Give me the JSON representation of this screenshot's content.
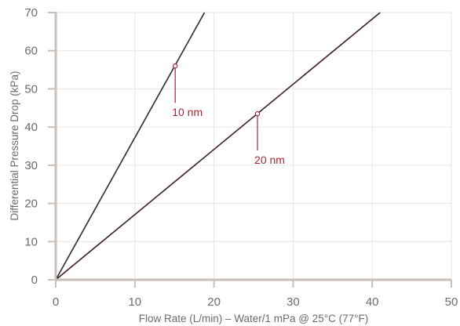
{
  "chart_data": {
    "type": "line",
    "xlabel": "Flow Rate (L/min) – Water/1 mPa @ 25°C (77°F)",
    "ylabel": "Differential Pressure Drop  (kPa)",
    "xlim": [
      0,
      50
    ],
    "ylim": [
      0,
      70
    ],
    "xticks": [
      0,
      10,
      20,
      30,
      40,
      50
    ],
    "yticks": [
      0,
      10,
      20,
      30,
      40,
      50,
      60,
      70
    ],
    "grid": true,
    "series": [
      {
        "name": "10 nm",
        "x": [
          0,
          18.8
        ],
        "y": [
          0,
          70
        ],
        "marker": {
          "x": 15.1,
          "y": 56
        },
        "line_color": "#2b2b2b"
      },
      {
        "name": "20 nm",
        "x": [
          0,
          41
        ],
        "y": [
          0,
          70
        ],
        "marker": {
          "x": 25.5,
          "y": 43.5
        },
        "line_color": "#3d1f1f"
      }
    ],
    "colors": {
      "axis": "#c9bfb8",
      "grid": "#e6e6e6",
      "label": "#a4283a",
      "tick_text": "#6b6b6b"
    }
  }
}
